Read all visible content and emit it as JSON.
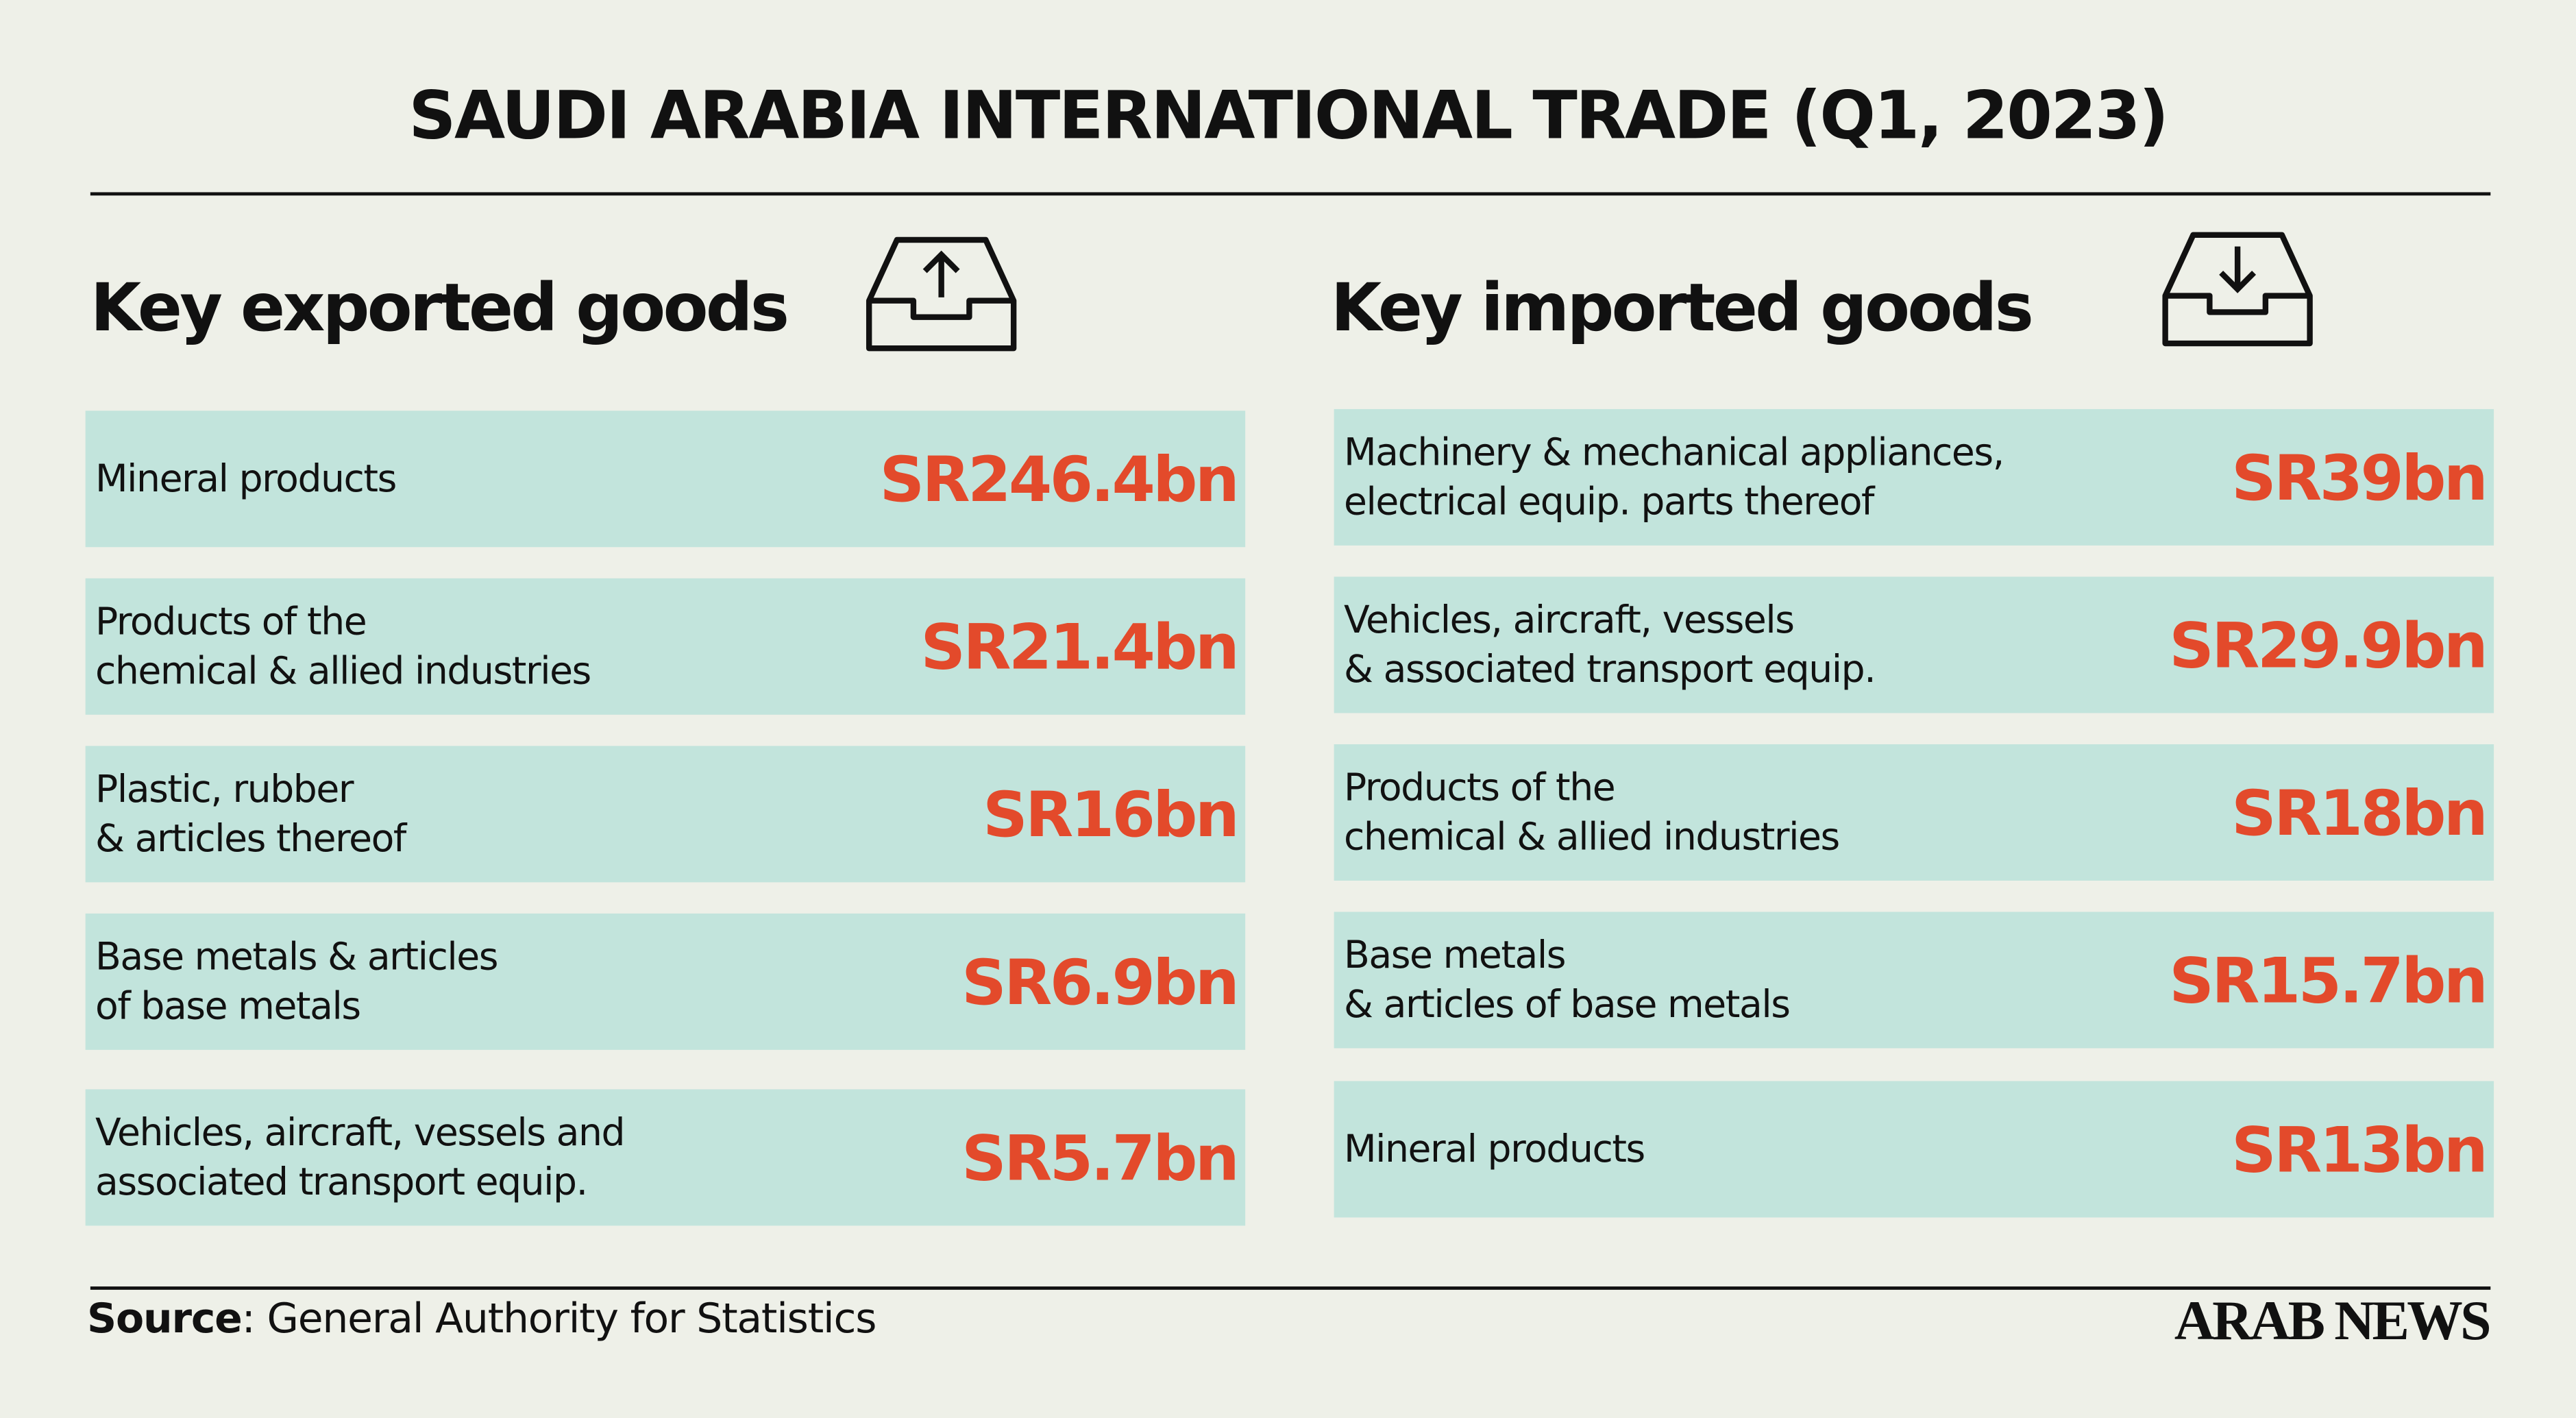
{
  "title": "SAUDI ARABIA INTERNATIONAL TRADE (Q1, 2023)",
  "exports": {
    "heading": "Key exported goods",
    "items": [
      {
        "label": [
          "Mineral products"
        ],
        "value": "SR246.4bn"
      },
      {
        "label": [
          "Products of the",
          "chemical & allied industries"
        ],
        "value": "SR21.4bn"
      },
      {
        "label": [
          "Plastic, rubber",
          "& articles thereof"
        ],
        "value": "SR16bn"
      },
      {
        "label": [
          "Base metals & articles",
          "of base metals"
        ],
        "value": "SR6.9bn"
      },
      {
        "label": [
          "Vehicles, aircraft, vessels and",
          "associated transport equip."
        ],
        "value": "SR5.7bn"
      }
    ]
  },
  "imports": {
    "heading": "Key imported goods",
    "items": [
      {
        "label": [
          "Machinery & mechanical appliances,",
          "electrical equip. parts thereof"
        ],
        "value": "SR39bn"
      },
      {
        "label": [
          "Vehicles, aircraft, vessels",
          "& associated transport equip."
        ],
        "value": "SR29.9bn"
      },
      {
        "label": [
          "Products of the",
          "chemical & allied industries"
        ],
        "value": "SR18bn"
      },
      {
        "label": [
          "Base metals",
          "& articles of base metals"
        ],
        "value": "SR15.7bn"
      },
      {
        "label": [
          "Mineral products"
        ],
        "value": "SR13bn"
      }
    ]
  },
  "source": {
    "label": "Source",
    "text": ": General Authority for Statistics"
  },
  "brand": "ARAB NEWS"
}
